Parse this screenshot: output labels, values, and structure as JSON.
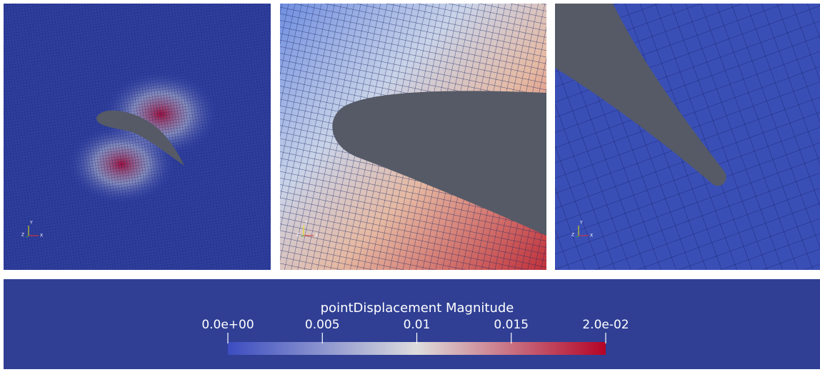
{
  "axes_triad": {
    "x": "X",
    "y": "Y",
    "z": "Z"
  },
  "colorbar": {
    "title": "pointDisplacement Magnitude",
    "range": [
      0,
      0.02
    ],
    "ticks": [
      {
        "value": 0,
        "label": "0.0e+00"
      },
      0.005,
      0.01,
      0.015,
      {
        "value": 0.02,
        "label": "2.0e-02"
      }
    ],
    "colormap": [
      "#3b4cc0",
      "#dddddd",
      "#b40426"
    ]
  }
}
